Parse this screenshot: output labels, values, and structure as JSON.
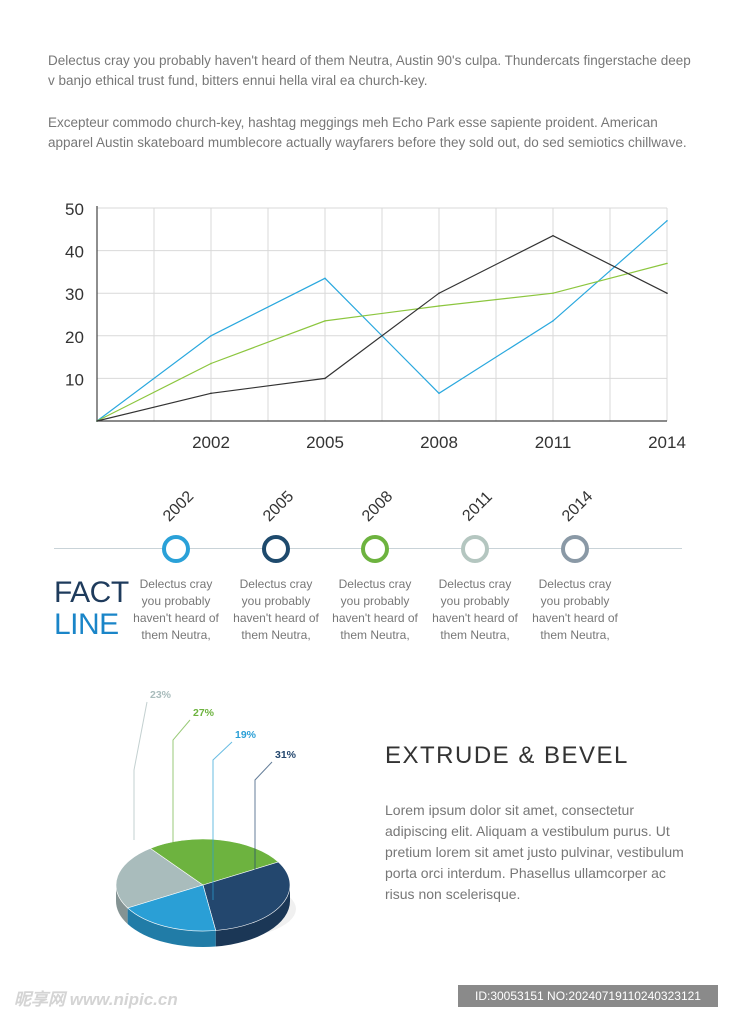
{
  "intro": {
    "paragraph1": "Delectus cray you probably haven't heard of them Neutra, Austin 90's culpa. Thundercats fingerstache deep v banjo ethical trust fund, bitters ennui hella viral ea church-key.",
    "paragraph2": "Excepteur commodo church-key, hashtag meggings meh Echo Park esse sapiente proident. American apparel Austin skateboard mumblecore actually wayfarers before they sold out, do sed semiotics chillwave."
  },
  "chart_data": [
    {
      "type": "line",
      "title": "",
      "xlabel": "",
      "ylabel": "",
      "x": [
        1999,
        2002,
        2005,
        2008,
        2011,
        2014
      ],
      "x_tick_labels": [
        "2002",
        "2005",
        "2008",
        "2011",
        "2014"
      ],
      "x_ticks": [
        2002,
        2005,
        2008,
        2011,
        2014
      ],
      "xlim": [
        1999,
        2014
      ],
      "ylim": [
        0,
        50
      ],
      "y_ticks": [
        10,
        20,
        30,
        40,
        50
      ],
      "y_tick_labels": [
        "10",
        "20",
        "30",
        "40",
        "50"
      ],
      "grid": true,
      "series": [
        {
          "name": "blue",
          "color": "#2aa8de",
          "values": [
            0,
            20,
            33.5,
            6.5,
            23.5,
            47
          ]
        },
        {
          "name": "green",
          "color": "#8cc63f",
          "values": [
            0,
            13.5,
            23.5,
            27,
            30,
            37
          ]
        },
        {
          "name": "dark",
          "color": "#333333",
          "values": [
            0,
            6.5,
            10,
            30,
            43.5,
            30
          ]
        }
      ]
    },
    {
      "type": "pie",
      "title": "",
      "slices": [
        {
          "label": "23%",
          "value": 23,
          "color": "#a9bcbc"
        },
        {
          "label": "27%",
          "value": 27,
          "color": "#6db33f"
        },
        {
          "label": "19%",
          "value": 19,
          "color": "#2a9fd6"
        },
        {
          "label": "31%",
          "value": 31,
          "color": "#23476e"
        }
      ]
    }
  ],
  "timeline": {
    "title_word1": "FACT",
    "title_word2": "LINE",
    "entries": [
      {
        "year": "2002",
        "color": "#2aa1d8",
        "text": "Delectus cray you probably haven't heard of them Neutra,"
      },
      {
        "year": "2005",
        "color": "#1e4a6d",
        "text": "Delectus cray you probably haven't heard of them Neutra,"
      },
      {
        "year": "2008",
        "color": "#6db33f",
        "text": "Delectus cray you probably haven't heard of them Neutra,"
      },
      {
        "year": "2011",
        "color": "#b4c6c0",
        "text": "Delectus cray you probably haven't heard of them Neutra,"
      },
      {
        "year": "2014",
        "color": "#8a99a6",
        "text": "Delectus cray you probably haven't heard of them Neutra,"
      }
    ]
  },
  "section": {
    "title": "EXTRUDE & BEVEL",
    "body": "Lorem ipsum dolor sit amet, consectetur adipiscing elit. Aliquam a vestibulum purus. Ut pretium lorem sit amet justo pulvinar, vestibulum porta orci interdum. Phasellus ullamcorper ac risus non scelerisque."
  },
  "watermark": {
    "left": "昵享网 www.nipic.cn",
    "right": "ID:30053151 NO:20240719110240323121"
  },
  "colors": {
    "fact_word": "#1e3b5c",
    "line_word": "#1a85c8"
  }
}
